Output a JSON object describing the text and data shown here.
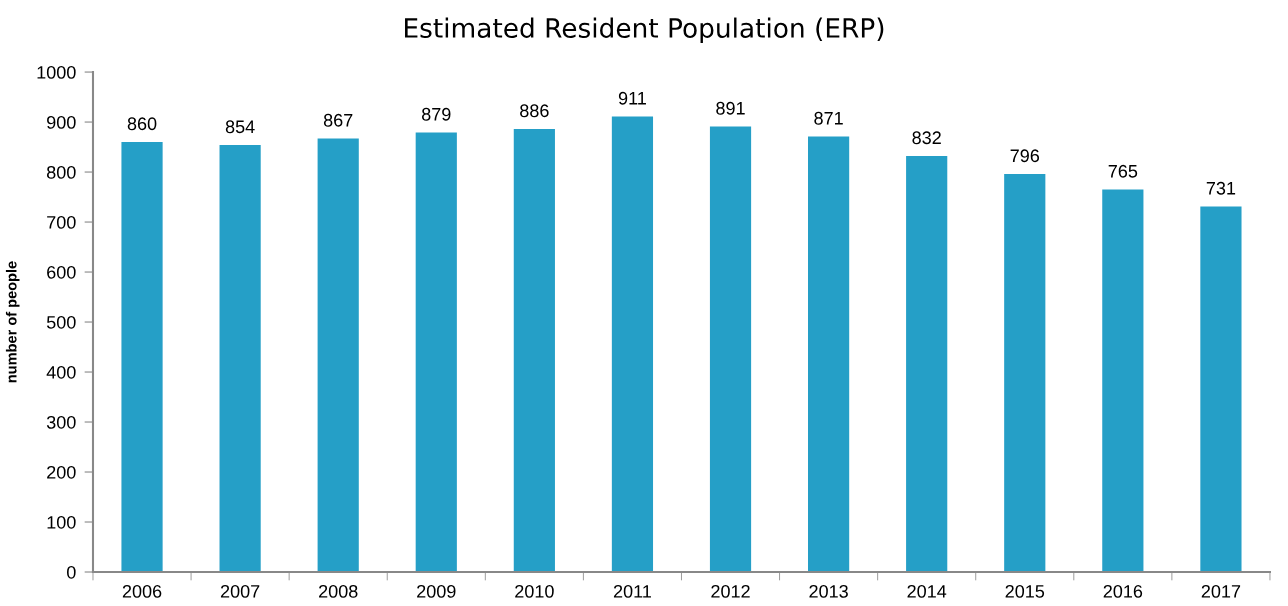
{
  "chart_data": {
    "type": "bar",
    "title": "Estimated Resident Population (ERP)",
    "ylabel": "number of people",
    "categories": [
      "2006",
      "2007",
      "2008",
      "2009",
      "2010",
      "2011",
      "2012",
      "2013",
      "2014",
      "2015",
      "2016",
      "2017"
    ],
    "values": [
      860,
      854,
      867,
      879,
      886,
      911,
      891,
      871,
      832,
      796,
      765,
      731
    ],
    "color": "#259fc7",
    "ylim": [
      0,
      1000
    ],
    "yticks": [
      0,
      100,
      200,
      300,
      400,
      500,
      600,
      700,
      800,
      900,
      1000
    ],
    "grid": false,
    "data_labels": true
  }
}
